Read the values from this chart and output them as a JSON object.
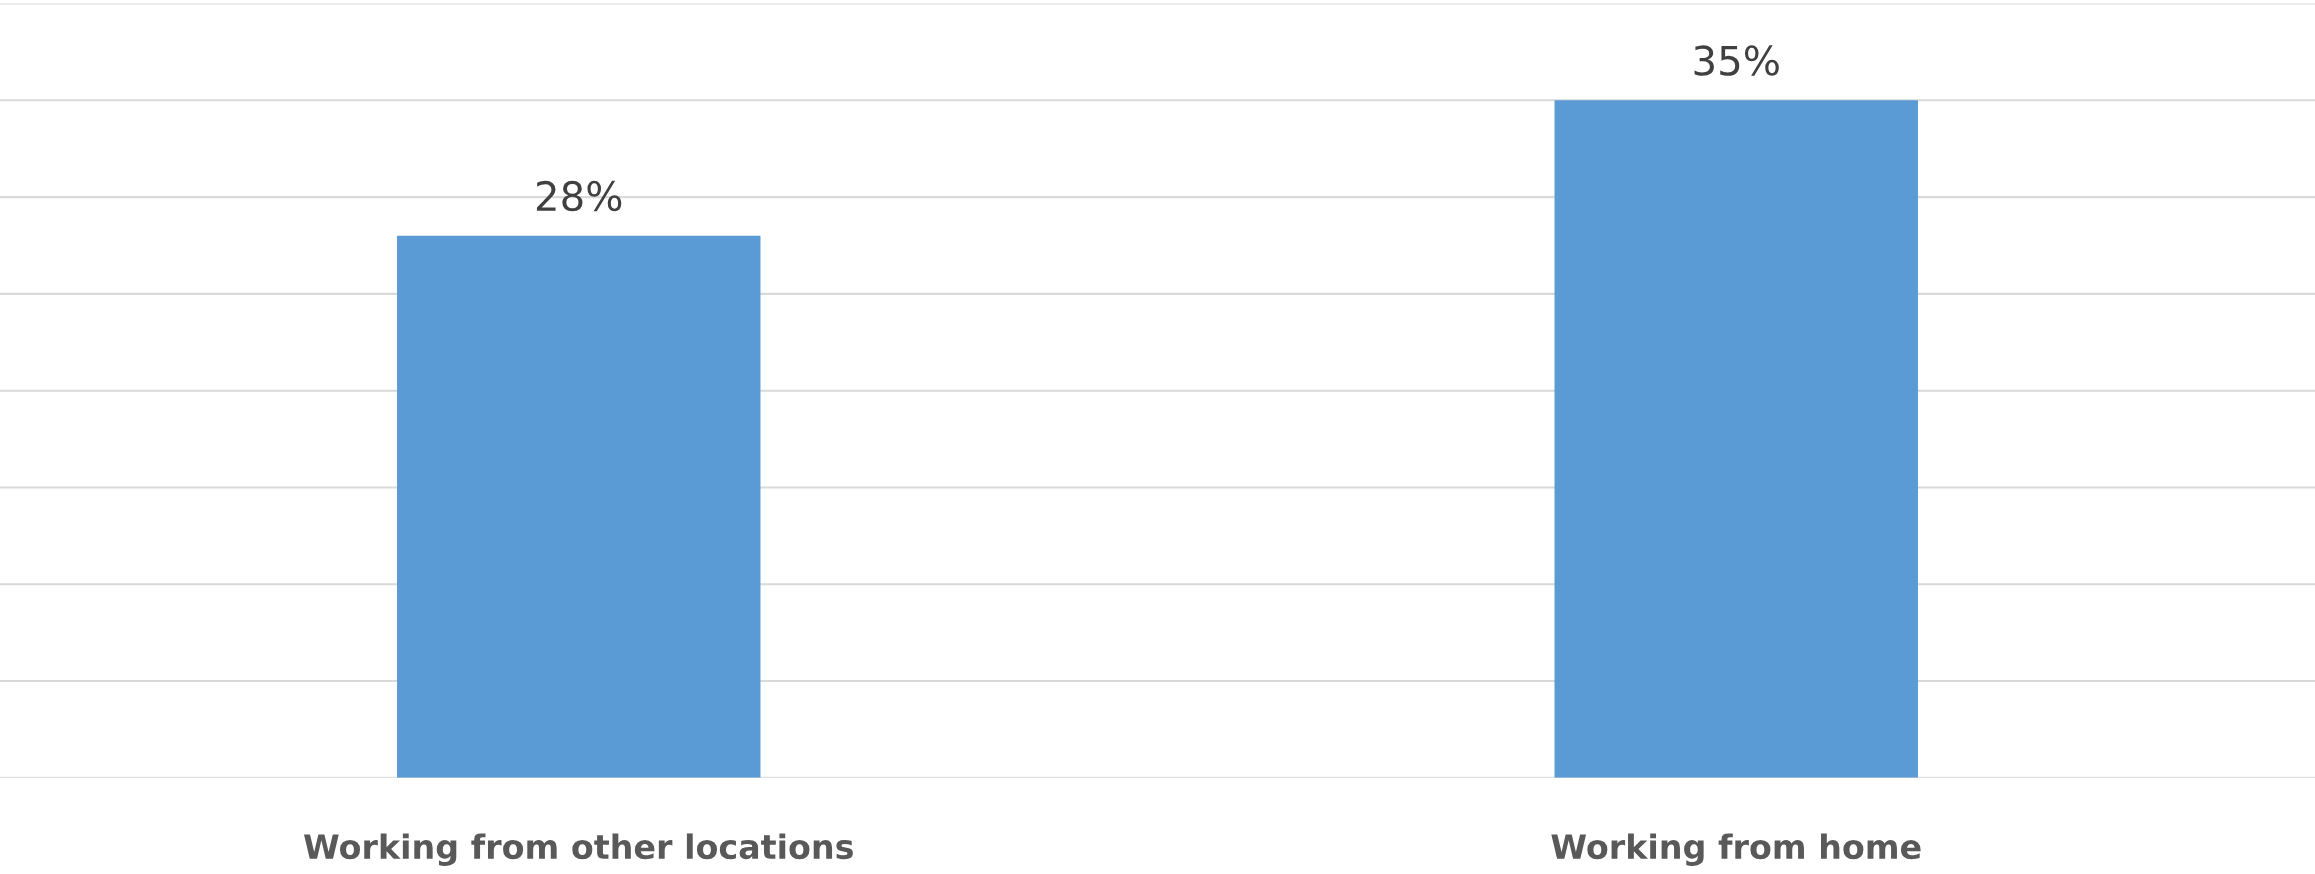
{
  "chart_data": {
    "type": "bar",
    "categories": [
      "Working from other locations",
      "Working from home"
    ],
    "values": [
      28,
      35
    ],
    "value_labels": [
      "28%",
      "35%"
    ],
    "color": "#5b9bd5",
    "ylim": [
      0,
      40
    ],
    "yticks": [
      {
        "value": 0,
        "label": null
      },
      {
        "value": 5,
        "label": null
      },
      {
        "value": 10,
        "label": null
      },
      {
        "value": 15,
        "label": null
      },
      {
        "value": 20,
        "label": null
      },
      {
        "value": 25,
        "label": null
      },
      {
        "value": 30,
        "label": null
      },
      {
        "value": 35,
        "label": null
      },
      {
        "value": 40,
        "label": null
      }
    ],
    "grid": "y",
    "tick_labels": "x"
  }
}
